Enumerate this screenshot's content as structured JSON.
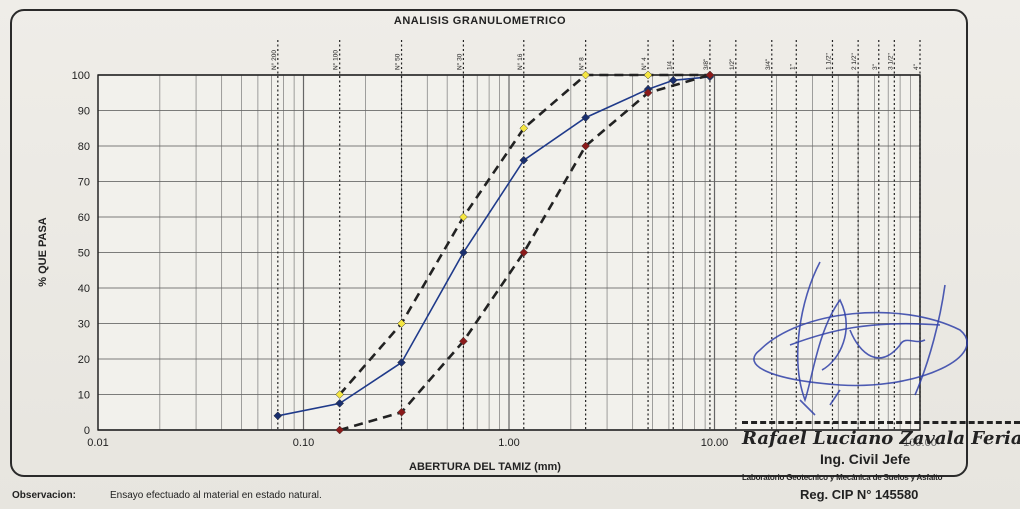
{
  "chart_data": {
    "type": "line",
    "title": "ANALISIS GRANULOMETRICO",
    "xlabel": "ABERTURA DEL TAMIZ (mm)",
    "ylabel": "% QUE PASA",
    "xscale": "log",
    "xlim": [
      0.01,
      100
    ],
    "ylim": [
      0,
      100
    ],
    "x_tick_labels": [
      "0.01",
      "0.10",
      "1.00",
      "10.00",
      "100.00"
    ],
    "y_tick_labels": [
      "0",
      "10",
      "20",
      "30",
      "40",
      "50",
      "60",
      "70",
      "80",
      "90",
      "100"
    ],
    "grid": true,
    "sieves": [
      {
        "label": "N° 200",
        "mm": 0.075
      },
      {
        "label": "N° 100",
        "mm": 0.15
      },
      {
        "label": "N° 50",
        "mm": 0.3
      },
      {
        "label": "N° 30",
        "mm": 0.6
      },
      {
        "label": "N° 16",
        "mm": 1.18
      },
      {
        "label": "N° 8",
        "mm": 2.36
      },
      {
        "label": "N° 4",
        "mm": 4.75
      },
      {
        "label": "1/4",
        "mm": 6.3
      },
      {
        "label": "3/8\"",
        "mm": 9.5
      },
      {
        "label": "1/2\"",
        "mm": 12.7
      },
      {
        "label": "3/4\"",
        "mm": 19.0
      },
      {
        "label": "1\"",
        "mm": 25.0
      },
      {
        "label": "1 1/2\"",
        "mm": 37.5
      },
      {
        "label": "2 1/2\"",
        "mm": 50.0
      },
      {
        "label": "3\"",
        "mm": 63.0
      },
      {
        "label": "3 1/2\"",
        "mm": 75.0
      },
      {
        "label": "4\"",
        "mm": 100.0
      }
    ],
    "series": [
      {
        "style": "solid",
        "color": "#1f3a8a",
        "marker": "#1a2f6e",
        "x": [
          0.075,
          0.15,
          0.3,
          0.6,
          1.18,
          2.36,
          4.75,
          6.3,
          9.5
        ],
        "y": [
          4,
          7.5,
          19,
          50,
          76,
          88,
          96,
          98.5,
          99.5
        ]
      },
      {
        "style": "dashed",
        "color": "#222222",
        "marker": "#f5e642",
        "x": [
          0.15,
          0.3,
          0.6,
          1.18,
          2.36,
          4.75,
          9.5
        ],
        "y": [
          10,
          30,
          60,
          85,
          100,
          100,
          100
        ]
      },
      {
        "style": "dashed",
        "color": "#222222",
        "marker": "#8b1a1a",
        "x": [
          0.15,
          0.3,
          0.6,
          1.18,
          2.36,
          4.75,
          9.5
        ],
        "y": [
          0,
          5,
          25,
          50,
          80,
          95,
          100
        ]
      }
    ]
  },
  "observation": {
    "label": "Observacion:",
    "text": "Ensayo efectuado al material en estado natural."
  },
  "signature": {
    "name": "Rafael Luciano Zavala Feria",
    "title": "Ing. Civil Jefe",
    "lab": "Laboratorio Geotecnico y Mecánica de Suelos y Asfalto",
    "reg": "Reg. CIP N° 145580"
  }
}
